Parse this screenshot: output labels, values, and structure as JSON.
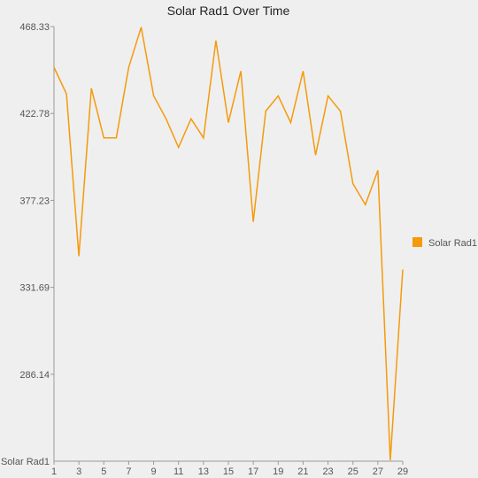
{
  "chart_data": {
    "type": "line",
    "title": "Solar Rad1 Over Time",
    "xlabel": "",
    "ylabel": "",
    "y_axis_floor_label": "Solar Rad1",
    "x": [
      1,
      2,
      3,
      4,
      5,
      6,
      7,
      8,
      9,
      10,
      11,
      12,
      13,
      14,
      15,
      16,
      17,
      18,
      19,
      20,
      21,
      22,
      23,
      24,
      25,
      26,
      27,
      28,
      29
    ],
    "x_tick_labels": [
      "1",
      "3",
      "5",
      "7",
      "9",
      "11",
      "13",
      "15",
      "17",
      "19",
      "21",
      "23",
      "25",
      "27",
      "29"
    ],
    "x_ticks": [
      1,
      3,
      5,
      7,
      9,
      11,
      13,
      15,
      17,
      19,
      21,
      23,
      25,
      27,
      29
    ],
    "y_tick_labels": [
      "468.33",
      "422.78",
      "377.23",
      "331.69",
      "286.14"
    ],
    "y_ticks": [
      468.33,
      422.78,
      377.23,
      331.69,
      286.14
    ],
    "ylim": [
      240.6,
      468.33
    ],
    "xlim": [
      1,
      29
    ],
    "series": [
      {
        "name": "Solar Rad1",
        "color": "#f59a0b",
        "values": [
          447,
          433,
          348,
          436,
          410,
          410,
          447,
          468,
          432,
          420,
          405,
          420,
          410,
          461,
          418,
          445,
          366,
          424,
          432,
          418,
          445,
          401,
          432,
          424,
          386,
          375,
          393,
          241,
          341
        ]
      }
    ],
    "legend": {
      "position": "right",
      "entries": [
        "Solar Rad1"
      ]
    },
    "grid": false
  }
}
